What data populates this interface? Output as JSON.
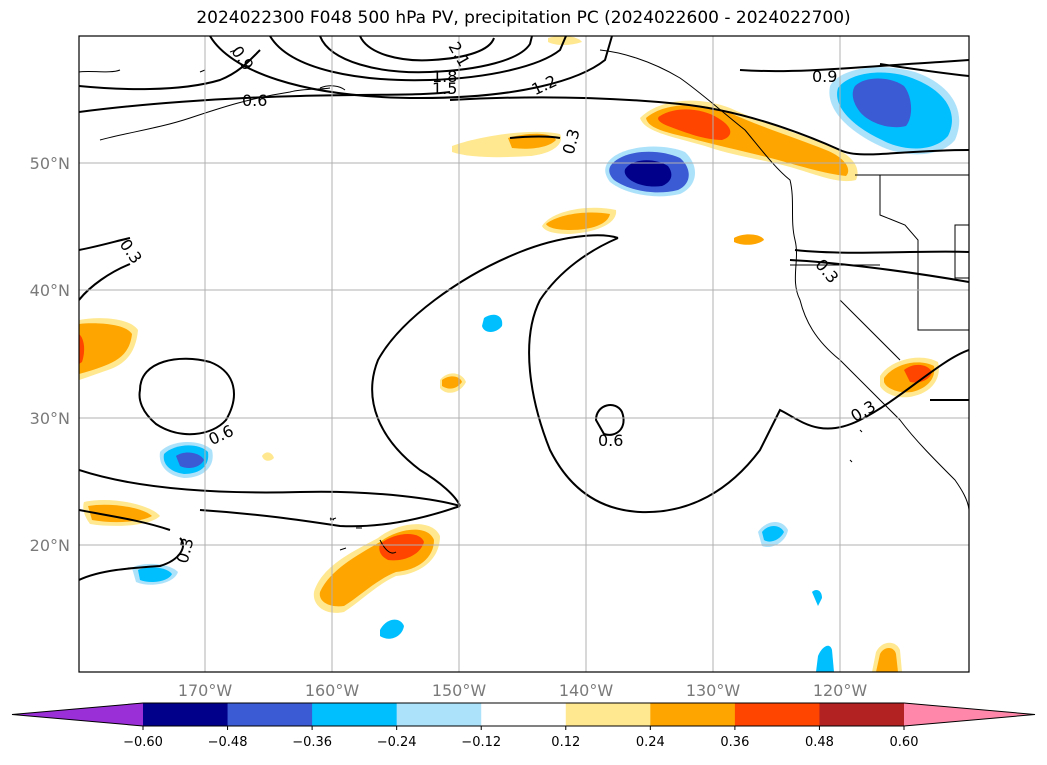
{
  "title": "2024022300 F048 500 hPa PV, precipitation PC (2024022600 - 2024022700)",
  "map": {
    "lon_range": [
      -180,
      -110
    ],
    "lat_range": [
      10,
      60
    ],
    "lat_ticks": [
      "50°N",
      "40°N",
      "30°N",
      "20°N"
    ],
    "lon_ticks": [
      "170°W",
      "160°W",
      "150°W",
      "140°W",
      "130°W",
      "120°W"
    ]
  },
  "contour_labels": [
    "0.9",
    "2.1",
    "1.8",
    "1.5",
    "1.2",
    "0.6",
    "0.9",
    "0.3",
    "0.3",
    "0.6",
    "0.6",
    "0.3",
    "0.3",
    "0.3"
  ],
  "colorbar": {
    "ticks": [
      "−0.60",
      "−0.48",
      "−0.36",
      "−0.24",
      "−0.12",
      "0.12",
      "0.24",
      "0.36",
      "0.48",
      "0.60"
    ],
    "colors": [
      "#9a2fd8",
      "#00008b",
      "#3a5bd4",
      "#00bfff",
      "#ade2fb",
      "#ffffff",
      "#ffe890",
      "#ffa500",
      "#ff4500",
      "#b22222",
      "#ff88aa"
    ]
  }
}
